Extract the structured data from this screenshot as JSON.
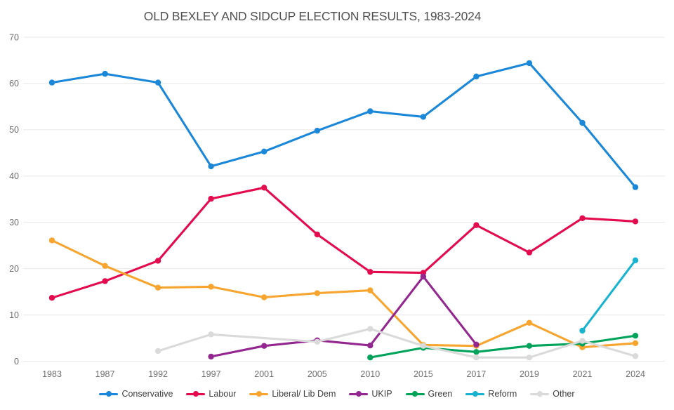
{
  "chart_data": {
    "type": "line",
    "title": "OLD BEXLEY AND SIDCUP ELECTION RESULTS, 1983-2024",
    "xlabel": "",
    "ylabel": "",
    "ylim": [
      0,
      70
    ],
    "yticks": [
      0,
      10,
      20,
      30,
      40,
      50,
      60,
      70
    ],
    "grid": "horizontal",
    "legend_position": "bottom",
    "categories": [
      "1983",
      "1987",
      "1992",
      "1997",
      "2001",
      "2005",
      "2010",
      "2015",
      "2017",
      "2019",
      "2021",
      "2024"
    ],
    "series": [
      {
        "name": "Conservative",
        "color": "#1b87d9",
        "values": [
          60.2,
          62.1,
          60.2,
          42.1,
          45.3,
          49.8,
          54.0,
          52.8,
          61.5,
          64.4,
          51.5,
          37.6
        ]
      },
      {
        "name": "Labour",
        "color": "#e40a4e",
        "values": [
          13.7,
          17.3,
          21.7,
          35.1,
          37.5,
          27.4,
          19.3,
          19.1,
          29.4,
          23.5,
          30.9,
          30.2
        ]
      },
      {
        "name": "Liberal/ Lib Dem",
        "color": "#f7a52e",
        "values": [
          26.1,
          20.6,
          15.9,
          16.1,
          13.8,
          14.7,
          15.3,
          3.5,
          3.3,
          8.3,
          3.0,
          3.9
        ]
      },
      {
        "name": "UKIP",
        "color": "#93278f",
        "values": [
          null,
          null,
          null,
          1.0,
          3.3,
          4.5,
          3.4,
          18.3,
          3.6,
          null,
          null,
          null
        ]
      },
      {
        "name": "Green",
        "color": "#00a35a",
        "values": [
          null,
          null,
          null,
          null,
          null,
          null,
          0.8,
          2.9,
          2.0,
          3.3,
          3.8,
          5.5
        ]
      },
      {
        "name": "Reform",
        "color": "#18b4cf",
        "values": [
          null,
          null,
          null,
          null,
          null,
          null,
          null,
          null,
          null,
          null,
          6.6,
          21.8
        ]
      },
      {
        "name": "Other",
        "color": "#dadada",
        "values": [
          null,
          null,
          2.2,
          5.8,
          null,
          4.2,
          7.0,
          3.3,
          0.8,
          0.8,
          4.4,
          1.1
        ]
      }
    ],
    "style": {
      "gridline_color": "#e7e7e7",
      "axis_label_color": "#6e6e6e",
      "title_color": "#525252",
      "legend_text_color": "#3f3f3f",
      "background": "#ffffff"
    }
  }
}
